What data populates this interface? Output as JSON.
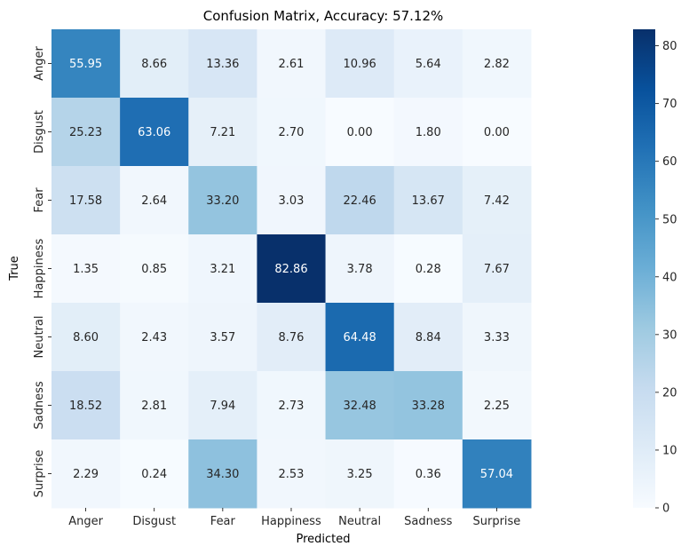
{
  "chart_data": {
    "type": "heatmap",
    "title": "Confusion Matrix, Accuracy: 57.12%",
    "xlabel": "Predicted",
    "ylabel": "True",
    "x_categories": [
      "Anger",
      "Disgust",
      "Fear",
      "Happiness",
      "Neutral",
      "Sadness",
      "Surprise"
    ],
    "y_categories": [
      "Anger",
      "Disgust",
      "Fear",
      "Happiness",
      "Neutral",
      "Sadness",
      "Surprise"
    ],
    "values": [
      [
        "55.95",
        "8.66",
        "13.36",
        "2.61",
        "10.96",
        "5.64",
        "2.82"
      ],
      [
        "25.23",
        "63.06",
        "7.21",
        "2.70",
        "0.00",
        "1.80",
        "0.00"
      ],
      [
        "17.58",
        "2.64",
        "33.20",
        "3.03",
        "22.46",
        "13.67",
        "7.42"
      ],
      [
        "1.35",
        "0.85",
        "3.21",
        "82.86",
        "3.78",
        "0.28",
        "7.67"
      ],
      [
        "8.60",
        "2.43",
        "3.57",
        "8.76",
        "64.48",
        "8.84",
        "3.33"
      ],
      [
        "18.52",
        "2.81",
        "7.94",
        "2.73",
        "32.48",
        "33.28",
        "2.25"
      ],
      [
        "2.29",
        "0.24",
        "34.30",
        "2.53",
        "3.25",
        "0.36",
        "57.04"
      ]
    ],
    "colorbar": {
      "min": 0,
      "max": 82.86,
      "ticks": [
        "0",
        "10",
        "20",
        "30",
        "40",
        "50",
        "60",
        "70",
        "80"
      ],
      "colormap": "Blues"
    }
  }
}
